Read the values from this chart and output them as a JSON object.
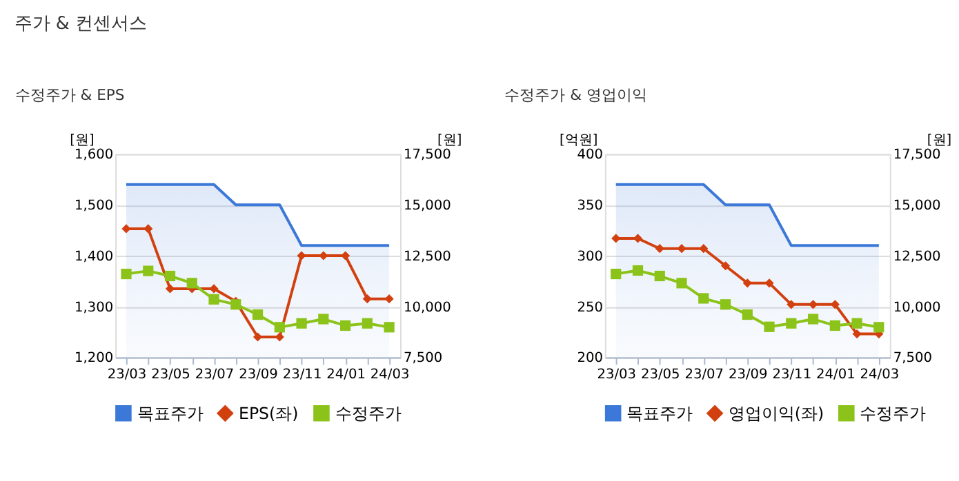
{
  "chart_data": [
    {
      "type": "line",
      "title": "수정주가 & EPS",
      "annotations": [
        "주가 & 컨센서스"
      ],
      "ylabel": "[원]",
      "y2label": "[원]",
      "categories": [
        "23/03",
        null,
        "23/05",
        null,
        "23/07",
        null,
        "23/09",
        null,
        "23/11",
        null,
        "24/01",
        null,
        "24/03"
      ],
      "series": [
        {
          "name": "목표주가",
          "type": "area",
          "axis": "y2",
          "color": "#3b78d8",
          "marker": "none",
          "values": [
            16000,
            16000,
            16000,
            16000,
            16000,
            15000,
            15000,
            15000,
            13000,
            13000,
            13000,
            13000,
            13000
          ]
        },
        {
          "name": "EPS(좌)",
          "type": "line",
          "color": "#d2400f",
          "marker": "diamond",
          "values": [
            1453,
            1453,
            1335,
            1335,
            1335,
            1310,
            1240,
            1240,
            1400,
            1400,
            1400,
            1315,
            1315
          ]
        },
        {
          "name": "수정주가",
          "type": "line",
          "axis": "y2",
          "color": "#8cc31a",
          "marker": "square",
          "values": [
            11600,
            11750,
            11500,
            11150,
            10350,
            10100,
            9600,
            8980,
            9170,
            9380,
            9060,
            9170,
            8980
          ]
        }
      ],
      "ylim": [
        1200,
        1600
      ],
      "yticks": [
        {
          "value": 1200,
          "label": "1,200"
        },
        {
          "value": 1300,
          "label": "1,300"
        },
        {
          "value": 1400,
          "label": "1,400"
        },
        {
          "value": 1500,
          "label": "1,500"
        },
        {
          "value": 1600,
          "label": "1,600"
        }
      ],
      "y2lim": [
        7500,
        17500
      ],
      "y2ticks": [
        {
          "value": 7500,
          "label": "7,500"
        },
        {
          "value": 10000,
          "label": "10,000"
        },
        {
          "value": 12500,
          "label": "12,500"
        },
        {
          "value": 15000,
          "label": "15,000"
        },
        {
          "value": 17500,
          "label": "17,500"
        }
      ],
      "grid": "y",
      "legend": "bottom"
    },
    {
      "type": "line",
      "title": "수정주가 & 영업이익",
      "ylabel": "[억원]",
      "y2label": "[원]",
      "categories": [
        "23/03",
        null,
        "23/05",
        null,
        "23/07",
        null,
        "23/09",
        null,
        "23/11",
        null,
        "24/01",
        null,
        "24/03"
      ],
      "series": [
        {
          "name": "목표주가",
          "type": "area",
          "axis": "y2",
          "color": "#3b78d8",
          "marker": "none",
          "values": [
            16000,
            16000,
            16000,
            16000,
            16000,
            15000,
            15000,
            15000,
            13000,
            13000,
            13000,
            13000,
            13000
          ]
        },
        {
          "name": "영업이익(좌)",
          "type": "line",
          "color": "#d2400f",
          "marker": "diamond",
          "values": [
            317,
            317,
            307,
            307,
            307,
            290,
            273,
            273,
            252,
            252,
            252,
            223,
            223
          ]
        },
        {
          "name": "수정주가",
          "type": "line",
          "axis": "y2",
          "color": "#8cc31a",
          "marker": "square",
          "values": [
            11600,
            11770,
            11500,
            11150,
            10400,
            10100,
            9600,
            9000,
            9170,
            9380,
            9060,
            9170,
            8980
          ]
        }
      ],
      "ylim": [
        200,
        400
      ],
      "yticks": [
        200,
        250,
        300,
        350,
        400
      ],
      "y2lim": [
        7500,
        17500
      ],
      "y2ticks": [
        {
          "value": 7500,
          "label": "7,500"
        },
        {
          "value": 10000,
          "label": "10,000"
        },
        {
          "value": 12500,
          "label": "12,500"
        },
        {
          "value": 15000,
          "label": "15,000"
        },
        {
          "value": 17500,
          "label": "17,500"
        }
      ],
      "grid": "y",
      "legend": "bottom"
    }
  ]
}
